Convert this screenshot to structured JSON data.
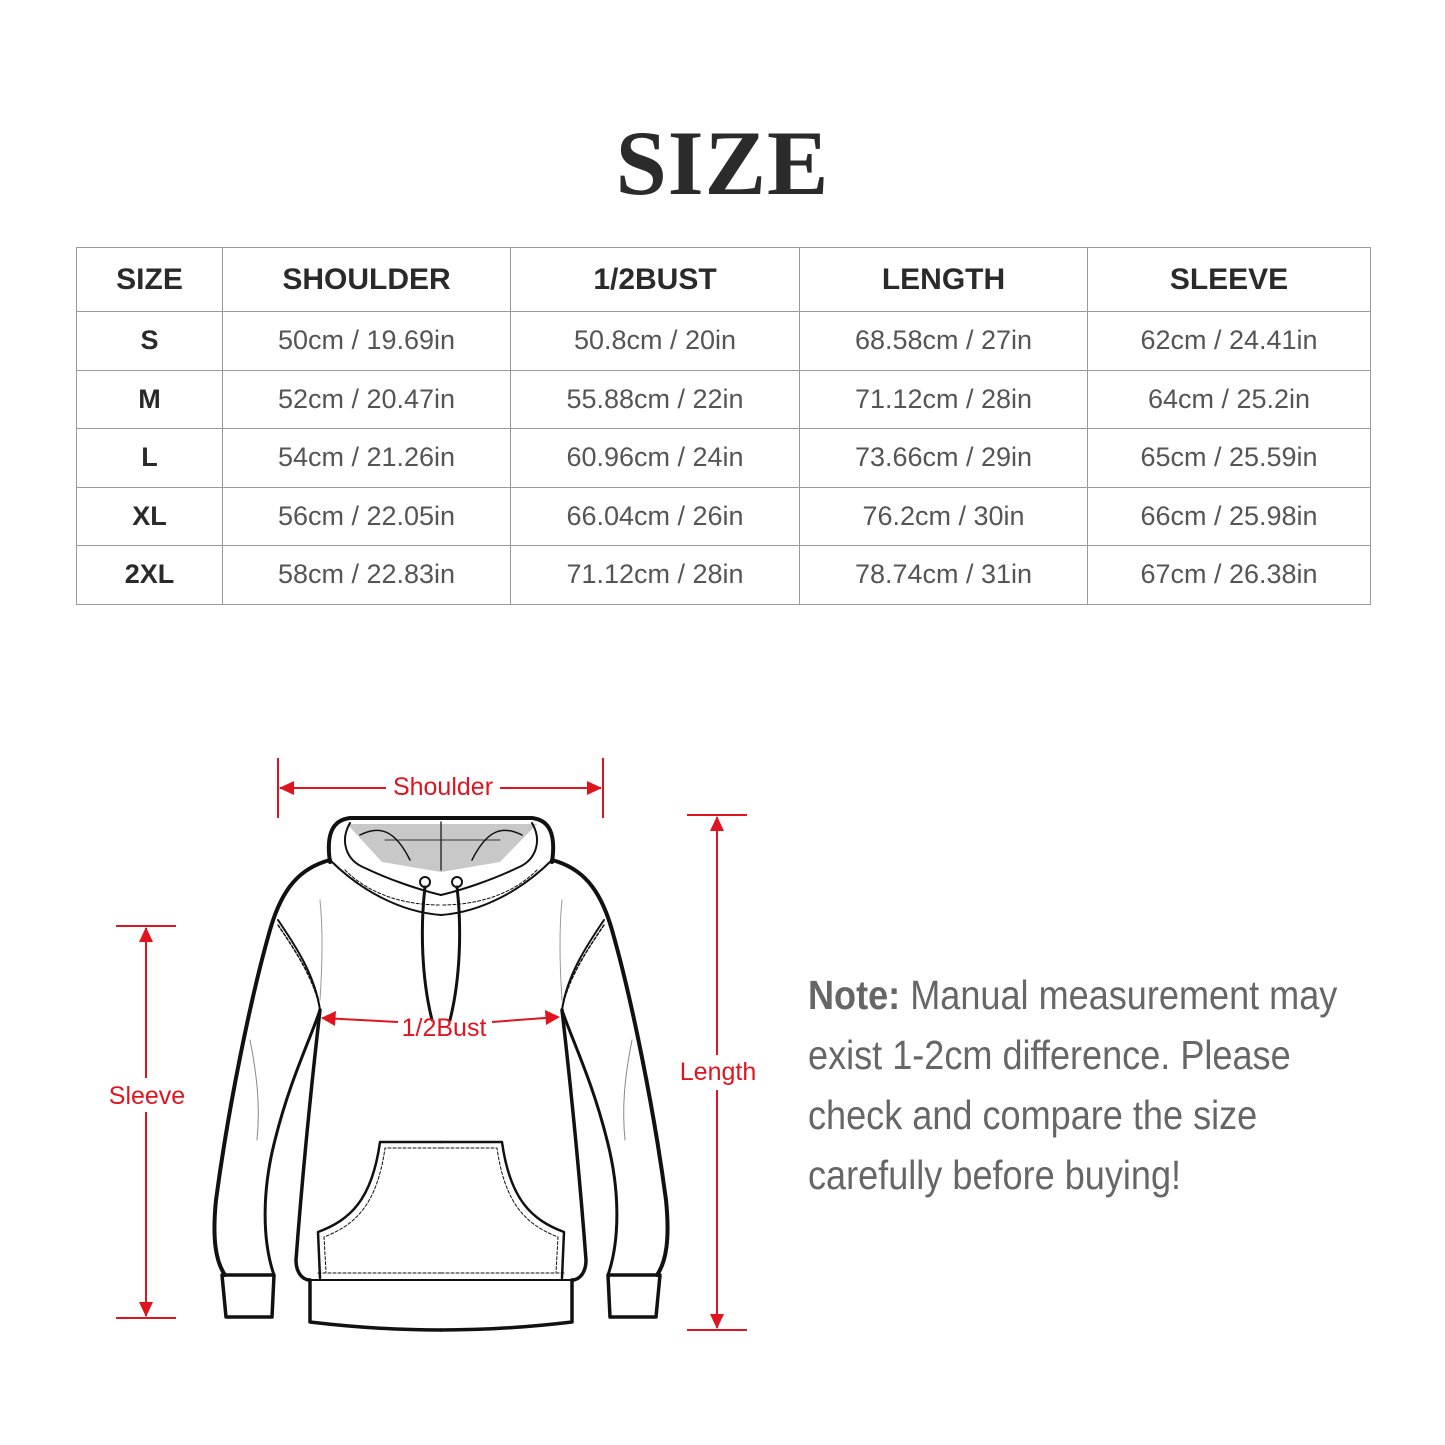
{
  "title": "SIZE",
  "table": {
    "headers": [
      "SIZE",
      "SHOULDER",
      "1/2BUST",
      "LENGTH",
      "SLEEVE"
    ],
    "rows": [
      {
        "size": "S",
        "shoulder": "50cm / 19.69in",
        "bust": "50.8cm / 20in",
        "length": "68.58cm / 27in",
        "sleeve": "62cm / 24.41in"
      },
      {
        "size": "M",
        "shoulder": "52cm / 20.47in",
        "bust": "55.88cm / 22in",
        "length": "71.12cm / 28in",
        "sleeve": "64cm / 25.2in"
      },
      {
        "size": "L",
        "shoulder": "54cm / 21.26in",
        "bust": "60.96cm / 24in",
        "length": "73.66cm / 29in",
        "sleeve": "65cm / 25.59in"
      },
      {
        "size": "XL",
        "shoulder": "56cm / 22.05in",
        "bust": "66.04cm / 26in",
        "length": "76.2cm / 30in",
        "sleeve": "66cm / 25.98in"
      },
      {
        "size": "2XL",
        "shoulder": "58cm / 22.83in",
        "bust": "71.12cm / 28in",
        "length": "78.74cm / 31in",
        "sleeve": "67cm / 26.38in"
      }
    ]
  },
  "diagram": {
    "shoulder_label": "Shoulder",
    "bust_label": "1/2Bust",
    "length_label": "Length",
    "sleeve_label": "Sleeve",
    "annotation_color": "#e0141e"
  },
  "note": {
    "prefix": "Note:",
    "text": " Manual measurement may exist 1-2cm difference. Please check and compare the size carefully before buying!"
  }
}
